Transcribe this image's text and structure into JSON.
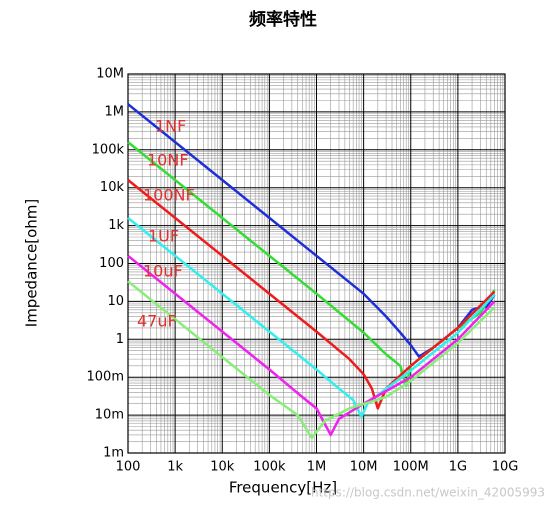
{
  "chart_data": {
    "type": "line",
    "title": "频率特性",
    "xlabel": "Frequency[Hz]",
    "ylabel": "Impedance[ohm]",
    "watermark": "https://blog.csdn.net/weixin_42005993",
    "xscale": "log",
    "yscale": "log",
    "grid": true,
    "xlim": [
      100,
      10000000000
    ],
    "ylim": [
      0.001,
      10000000
    ],
    "xticks": [
      100,
      {
        "value": 1000,
        "label": "1k"
      },
      {
        "value": 10000,
        "label": "10k"
      },
      {
        "value": 100000,
        "label": "100k"
      },
      {
        "value": 1000000,
        "label": "1M"
      },
      {
        "value": 10000000,
        "label": "10M"
      },
      {
        "value": 100000000,
        "label": "100M"
      },
      {
        "value": 1000000000,
        "label": "1G"
      },
      {
        "value": 10000000000,
        "label": "10G"
      }
    ],
    "yticks": [
      {
        "value": 0.001,
        "label": "1m"
      },
      {
        "value": 0.01,
        "label": "10m"
      },
      {
        "value": 0.1,
        "label": "100m"
      },
      1,
      10,
      100,
      {
        "value": 1000,
        "label": "1k"
      },
      {
        "value": 10000,
        "label": "10k"
      },
      {
        "value": 100000,
        "label": "100k"
      },
      {
        "value": 1000000,
        "label": "1M"
      },
      {
        "value": 10000000,
        "label": "10M"
      }
    ],
    "series": [
      {
        "name": "1NF",
        "color": "#1f2fd8",
        "x": [
          100,
          10000,
          1000000,
          10000000,
          30000000,
          60000000,
          100000000,
          150000000,
          300000000,
          1000000000,
          2000000000,
          3000000000,
          4000000000,
          6000000000
        ],
        "values": [
          1600000,
          16000,
          160,
          16,
          4,
          1.5,
          0.7,
          0.35,
          0.6,
          2,
          6,
          7,
          7,
          15
        ]
      },
      {
        "name": "10NF",
        "color": "#33dd33",
        "x": [
          100,
          1000000,
          10000000,
          30000000,
          60000000,
          80000000,
          100000000,
          300000000,
          1000000000,
          3000000000,
          6000000000
        ],
        "values": [
          160000,
          16,
          1.5,
          0.4,
          0.2,
          0.06,
          0.2,
          0.6,
          2,
          5,
          20
        ]
      },
      {
        "name": "100NF",
        "color": "#ee1c1c",
        "x": [
          100,
          1000000,
          5000000,
          10000000,
          15000000,
          20000000,
          30000000,
          100000000,
          1000000000,
          6000000000
        ],
        "values": [
          16000,
          1.6,
          0.3,
          0.12,
          0.05,
          0.015,
          0.05,
          0.2,
          2,
          18
        ]
      },
      {
        "name": "1UF",
        "color": "#33eeee",
        "x": [
          100,
          100000,
          1000000,
          3000000,
          6000000,
          9000000,
          12000000,
          30000000,
          100000000,
          1000000000,
          6000000000
        ],
        "values": [
          1600,
          1.6,
          0.16,
          0.05,
          0.025,
          0.009,
          0.02,
          0.05,
          0.15,
          1.5,
          15
        ]
      },
      {
        "name": "10uF",
        "color": "#ee22ee",
        "x": [
          100,
          10000,
          100000,
          500000,
          1000000,
          2000000,
          3000000,
          10000000,
          100000000,
          1000000000,
          6000000000
        ],
        "values": [
          160,
          1.6,
          0.16,
          0.03,
          0.015,
          0.003,
          0.008,
          0.02,
          0.1,
          1,
          10
        ]
      },
      {
        "name": "47uF",
        "color": "#88ee77",
        "x": [
          100,
          10000,
          100000,
          400000,
          800000,
          1500000,
          5000000,
          30000000,
          100000000,
          1000000000,
          6000000000
        ],
        "values": [
          34,
          0.34,
          0.034,
          0.01,
          0.0025,
          0.007,
          0.015,
          0.03,
          0.08,
          0.8,
          7
        ]
      }
    ]
  }
}
